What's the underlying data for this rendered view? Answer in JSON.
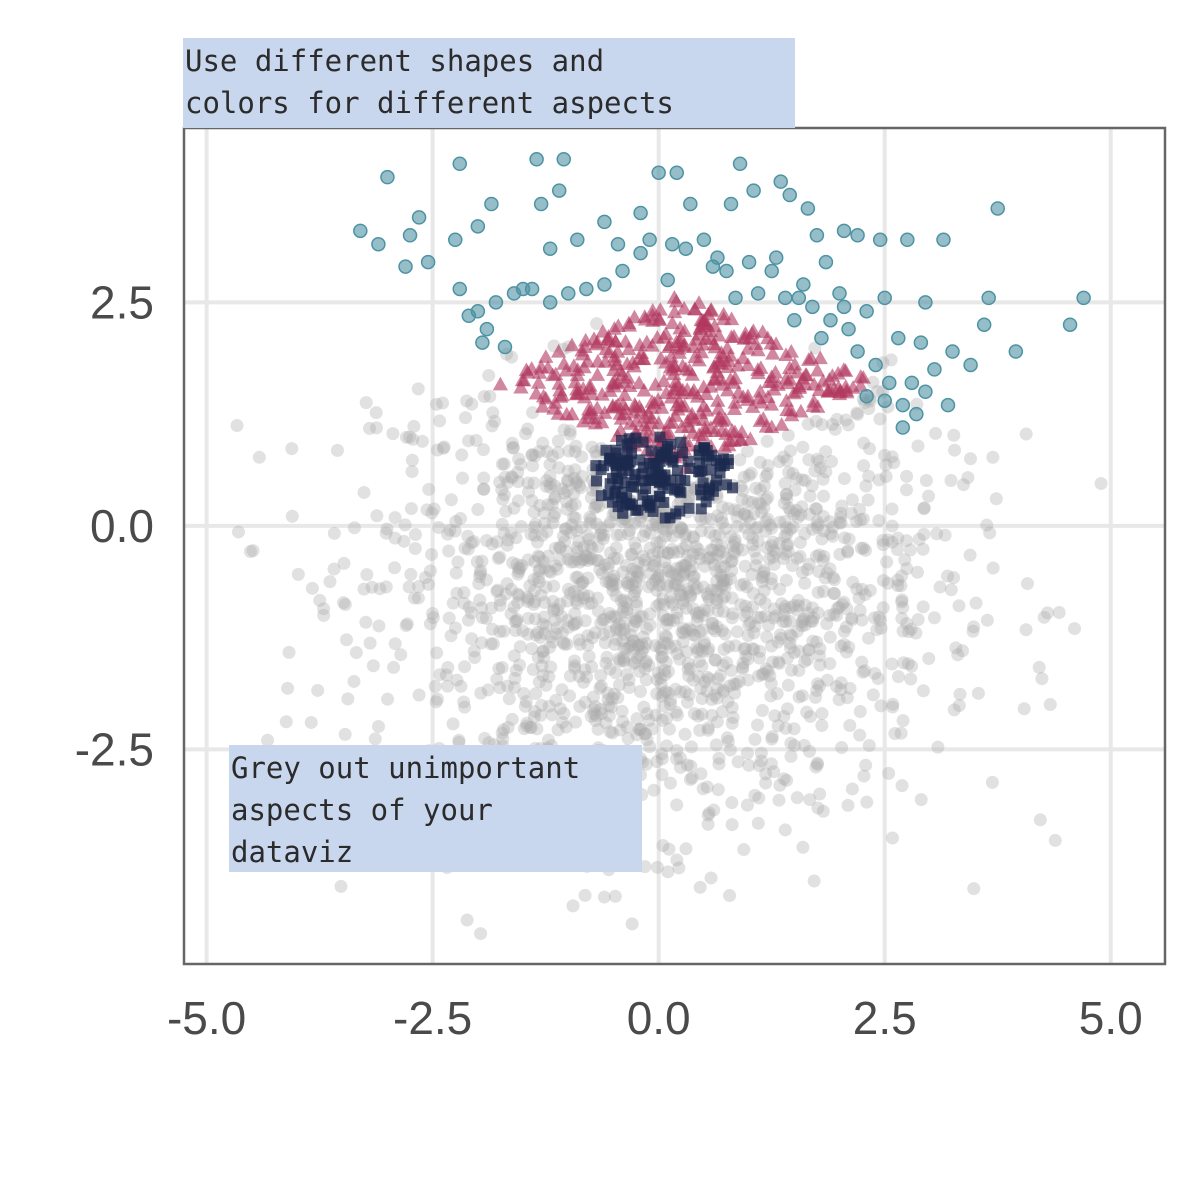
{
  "annotations": {
    "top": "Use different shapes and\ncolors for different aspects",
    "bottom": "Grey out unimportant\naspects of your\ndataviz"
  },
  "chart_data": {
    "type": "scatter",
    "title": "",
    "xlabel": "",
    "ylabel": "",
    "xlim": [
      -5.25,
      5.6
    ],
    "ylim": [
      -4.9,
      4.45
    ],
    "grid": true,
    "x_ticks": [
      -5.0,
      -2.5,
      0.0,
      2.5,
      5.0
    ],
    "y_ticks": [
      -2.5,
      0.0,
      2.5
    ],
    "x_tick_labels": [
      "-5.0",
      "-2.5",
      "0.0",
      "2.5",
      "5.0"
    ],
    "y_tick_labels": [
      "-2.5",
      "0.0",
      "2.5"
    ],
    "colors": {
      "background_points": "#aaaaaa",
      "teal_circles": "#4e93a3",
      "crimson_triangles": "#b0375f",
      "navy_squares": "#1c2a4f",
      "annotation_fill": "#c9d7ee",
      "grid": "#e8e8e8",
      "frame": "#666666"
    },
    "groups": {
      "background": {
        "marker": "circle",
        "count": 2000,
        "description_of_region": "everything outside the highlighted bands",
        "x_range": [
          -5.0,
          5.1
        ],
        "y_range": [
          -4.6,
          3.2
        ]
      },
      "teal": {
        "marker": "circle",
        "region": "y > 2.5 - 0.3|x| style upper band",
        "points": [
          [
            -3.0,
            3.9
          ],
          [
            -2.2,
            4.05
          ],
          [
            -1.35,
            4.1
          ],
          [
            -1.05,
            4.1
          ],
          [
            0.9,
            4.05
          ],
          [
            -3.3,
            3.3
          ],
          [
            -3.1,
            3.15
          ],
          [
            -2.75,
            3.25
          ],
          [
            -2.65,
            3.45
          ],
          [
            -2.55,
            2.95
          ],
          [
            -2.8,
            2.9
          ],
          [
            -2.25,
            3.2
          ],
          [
            -2.0,
            3.35
          ],
          [
            -1.85,
            3.6
          ],
          [
            -1.3,
            3.6
          ],
          [
            -1.1,
            3.75
          ],
          [
            -0.6,
            3.4
          ],
          [
            -0.2,
            3.5
          ],
          [
            0.0,
            3.95
          ],
          [
            0.2,
            3.95
          ],
          [
            0.35,
            3.6
          ],
          [
            0.8,
            3.6
          ],
          [
            1.05,
            3.75
          ],
          [
            1.35,
            3.85
          ],
          [
            1.45,
            3.7
          ],
          [
            1.65,
            3.55
          ],
          [
            1.75,
            3.25
          ],
          [
            2.05,
            3.3
          ],
          [
            2.2,
            3.25
          ],
          [
            2.45,
            3.2
          ],
          [
            2.75,
            3.2
          ],
          [
            3.15,
            3.2
          ],
          [
            3.75,
            3.55
          ],
          [
            -1.4,
            2.65
          ],
          [
            -1.6,
            2.6
          ],
          [
            -1.8,
            2.5
          ],
          [
            -2.0,
            2.4
          ],
          [
            -2.2,
            2.65
          ],
          [
            -2.1,
            2.35
          ],
          [
            -1.9,
            2.2
          ],
          [
            -1.95,
            2.05
          ],
          [
            -1.7,
            2.0
          ],
          [
            -1.5,
            2.65
          ],
          [
            -1.2,
            2.5
          ],
          [
            -1.0,
            2.6
          ],
          [
            -0.8,
            2.65
          ],
          [
            -0.6,
            2.7
          ],
          [
            -0.4,
            2.85
          ],
          [
            -0.2,
            3.05
          ],
          [
            -0.1,
            3.2
          ],
          [
            0.1,
            2.75
          ],
          [
            0.3,
            3.1
          ],
          [
            0.5,
            3.2
          ],
          [
            0.6,
            2.9
          ],
          [
            0.75,
            2.85
          ],
          [
            0.85,
            2.55
          ],
          [
            1.0,
            2.95
          ],
          [
            1.1,
            2.6
          ],
          [
            1.25,
            2.85
          ],
          [
            1.4,
            2.55
          ],
          [
            1.5,
            2.3
          ],
          [
            1.6,
            2.7
          ],
          [
            1.7,
            2.45
          ],
          [
            1.8,
            2.1
          ],
          [
            1.9,
            2.3
          ],
          [
            2.0,
            2.6
          ],
          [
            2.1,
            2.2
          ],
          [
            2.2,
            1.95
          ],
          [
            2.3,
            2.4
          ],
          [
            2.4,
            1.8
          ],
          [
            2.55,
            1.6
          ],
          [
            2.65,
            2.1
          ],
          [
            2.8,
            1.6
          ],
          [
            2.9,
            2.05
          ],
          [
            2.95,
            1.5
          ],
          [
            3.05,
            1.75
          ],
          [
            3.2,
            1.35
          ],
          [
            3.25,
            1.95
          ],
          [
            3.45,
            1.8
          ],
          [
            3.6,
            2.25
          ],
          [
            3.65,
            2.55
          ],
          [
            3.95,
            1.95
          ],
          [
            4.55,
            2.25
          ],
          [
            4.7,
            2.55
          ],
          [
            2.3,
            1.45
          ],
          [
            2.5,
            1.4
          ],
          [
            2.7,
            1.35
          ],
          [
            2.85,
            1.25
          ],
          [
            2.7,
            1.1
          ],
          [
            2.95,
            2.5
          ],
          [
            2.5,
            2.55
          ],
          [
            2.05,
            2.45
          ],
          [
            1.55,
            2.55
          ],
          [
            -0.9,
            3.2
          ],
          [
            -1.2,
            3.1
          ],
          [
            -0.45,
            3.15
          ],
          [
            0.15,
            3.15
          ],
          [
            0.65,
            3.0
          ],
          [
            1.3,
            3.0
          ],
          [
            1.85,
            2.95
          ]
        ]
      },
      "crimson": {
        "marker": "triangle",
        "region": "diamond band between y ≈ 0.6 and 2.5, x ≈ -1.8 to 2.3",
        "extent": {
          "x": [
            -1.8,
            2.3
          ],
          "y": [
            0.6,
            2.55
          ]
        }
      },
      "navy": {
        "marker": "square",
        "region": "small cluster near origin",
        "extent": {
          "x": [
            -0.7,
            0.85
          ],
          "y": [
            0.05,
            1.0
          ]
        }
      }
    }
  }
}
